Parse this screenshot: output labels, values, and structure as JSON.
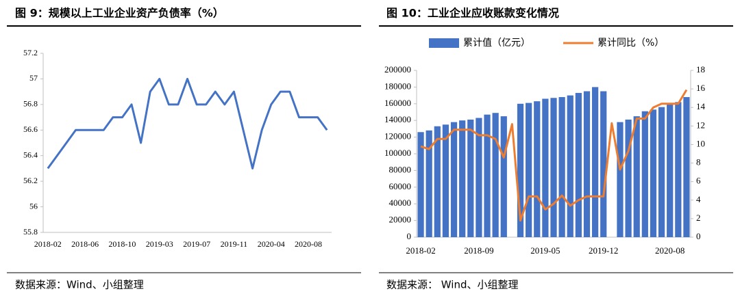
{
  "chart_data": [
    {
      "type": "line",
      "title": "图 9：规模以上工业企业资产负债率（%）",
      "source": "数据来源：Wind、小组整理",
      "categories": [
        "2018-02",
        null,
        null,
        null,
        "2018-06",
        null,
        null,
        null,
        "2018-10",
        null,
        null,
        null,
        "2019-03",
        null,
        null,
        null,
        "2019-07",
        null,
        null,
        null,
        "2019-11",
        null,
        null,
        null,
        "2020-04",
        null,
        null,
        null,
        "2020-08",
        null,
        null
      ],
      "series": [
        {
          "name": null,
          "color": "#4472c4",
          "values": [
            56.3,
            56.4,
            56.5,
            56.6,
            56.6,
            56.6,
            56.6,
            56.7,
            56.7,
            56.8,
            56.5,
            56.9,
            57.0,
            56.8,
            56.8,
            57.0,
            56.8,
            56.8,
            56.9,
            56.8,
            56.9,
            56.6,
            56.3,
            56.6,
            56.8,
            56.9,
            56.9,
            56.7,
            56.7,
            56.7,
            56.6
          ]
        }
      ],
      "ylim": [
        55.8,
        57.2
      ],
      "yticks": [
        55.8,
        56,
        56.2,
        56.4,
        56.6,
        56.8,
        57,
        57.2
      ]
    },
    {
      "type": "combo",
      "title": "图 10：工业企业应收账款变化情况",
      "source": "数据来源：  Wind、小组整理",
      "categories": [
        "2018-02",
        null,
        null,
        null,
        null,
        null,
        null,
        "2018-09",
        null,
        null,
        null,
        null,
        null,
        null,
        null,
        "2019-05",
        null,
        null,
        null,
        null,
        null,
        null,
        "2019-12",
        null,
        null,
        null,
        null,
        null,
        null,
        null,
        "2020-08",
        null,
        null
      ],
      "series": [
        {
          "name": "累计值（亿元）",
          "color": "#4472c4",
          "kind": "bar",
          "values": [
            126000,
            128000,
            133000,
            135000,
            138000,
            140000,
            141000,
            143000,
            147000,
            149000,
            145000,
            null,
            160000,
            161000,
            163000,
            166000,
            167000,
            168000,
            170000,
            173000,
            175000,
            180000,
            175000,
            null,
            138000,
            141000,
            145000,
            151000,
            153000,
            156000,
            159000,
            162000,
            168000
          ]
        },
        {
          "name": "累计同比（%）",
          "color": "#ed7d31",
          "kind": "line",
          "axis": "y2",
          "values": [
            9.8,
            9.5,
            10.6,
            10.6,
            11.6,
            11.6,
            11.6,
            11.0,
            11.0,
            10.6,
            8.6,
            12.2,
            1.8,
            4.4,
            4.4,
            3.0,
            3.6,
            4.5,
            3.4,
            4.0,
            4.4,
            4.4,
            4.4,
            12.3,
            7.3,
            9.3,
            12.8,
            12.8,
            14.0,
            14.4,
            14.4,
            14.4,
            15.9
          ]
        }
      ],
      "ylim": [
        0,
        200000
      ],
      "yticks": [
        0,
        20000,
        40000,
        60000,
        80000,
        100000,
        120000,
        140000,
        160000,
        180000,
        200000
      ],
      "y2lim": [
        0,
        18
      ],
      "y2ticks": [
        0,
        2,
        4,
        6,
        8,
        10,
        12,
        14,
        16,
        18
      ],
      "legend": "top"
    }
  ]
}
